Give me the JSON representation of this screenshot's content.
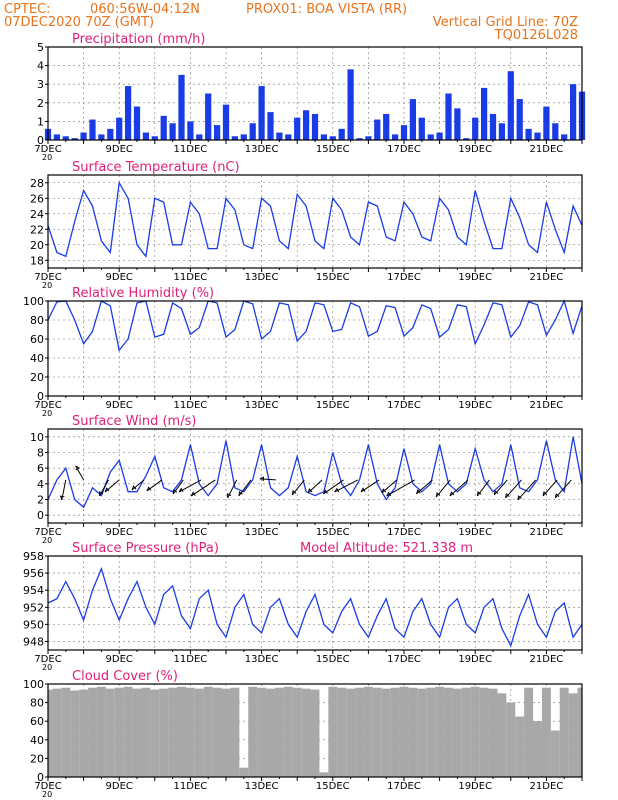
{
  "header": {
    "org": "CPTEC:",
    "coords": "060:56W-04:12N",
    "station": "PROX01: BOA VISTA (RR)",
    "run": "07DEC2020 70Z (GMT)",
    "grid_note": "Vertical Grid Line: 70Z",
    "product_code": "TQ0126L028"
  },
  "colors": {
    "header": "#e8731c",
    "panel_title": "#e0207a",
    "series": "#1a3ce6",
    "cloud": "#a8a8a8"
  },
  "x_axis": {
    "ticks": [
      "7DEC",
      "9DEC",
      "11DEC",
      "13DEC",
      "15DEC",
      "17DEC",
      "19DEC",
      "21DEC"
    ],
    "year_stub": "20"
  },
  "chart_data": [
    {
      "id": "precip",
      "type": "bar",
      "title": "Precipitation (mm/h)",
      "subtitle": "",
      "ylim": [
        0,
        5
      ],
      "yticks": [
        0,
        1,
        2,
        3,
        4,
        5
      ],
      "x": [
        7.0,
        7.25,
        7.5,
        7.75,
        8.0,
        8.25,
        8.5,
        8.75,
        9.0,
        9.25,
        9.5,
        9.75,
        10.0,
        10.25,
        10.5,
        10.75,
        11.0,
        11.25,
        11.5,
        11.75,
        12.0,
        12.25,
        12.5,
        12.75,
        13.0,
        13.25,
        13.5,
        13.75,
        14.0,
        14.25,
        14.5,
        14.75,
        15.0,
        15.25,
        15.5,
        15.75,
        16.0,
        16.25,
        16.5,
        16.75,
        17.0,
        17.25,
        17.5,
        17.75,
        18.0,
        18.25,
        18.5,
        18.75,
        19.0,
        19.25,
        19.5,
        19.75,
        20.0,
        20.25,
        20.5,
        20.75,
        21.0,
        21.25,
        21.5,
        21.75,
        22.0
      ],
      "values": [
        0.6,
        0.3,
        0.2,
        0.1,
        0.4,
        1.1,
        0.3,
        0.6,
        1.2,
        2.9,
        1.8,
        0.4,
        0.2,
        1.3,
        0.9,
        3.5,
        1.0,
        0.3,
        2.5,
        0.8,
        1.9,
        0.2,
        0.3,
        0.9,
        2.9,
        1.5,
        0.4,
        0.3,
        1.2,
        1.6,
        1.4,
        0.3,
        0.2,
        0.6,
        3.8,
        0.1,
        0.2,
        1.1,
        1.4,
        0.3,
        0.8,
        2.2,
        1.2,
        0.3,
        0.4,
        2.5,
        1.7,
        0.1,
        1.2,
        2.8,
        1.4,
        0.9,
        3.7,
        2.2,
        0.6,
        0.4,
        1.8,
        0.9,
        0.3,
        3.0,
        2.6
      ]
    },
    {
      "id": "temp",
      "type": "line",
      "title": "Surface Temperature (nC)",
      "subtitle": "",
      "ylim": [
        17,
        29
      ],
      "yticks": [
        18,
        20,
        22,
        24,
        26,
        28
      ],
      "x": [
        7.0,
        7.25,
        7.5,
        7.75,
        8.0,
        8.25,
        8.5,
        8.75,
        9.0,
        9.25,
        9.5,
        9.75,
        10.0,
        10.25,
        10.5,
        10.75,
        11.0,
        11.25,
        11.5,
        11.75,
        12.0,
        12.25,
        12.5,
        12.75,
        13.0,
        13.25,
        13.5,
        13.75,
        14.0,
        14.25,
        14.5,
        14.75,
        15.0,
        15.25,
        15.5,
        15.75,
        16.0,
        16.25,
        16.5,
        16.75,
        17.0,
        17.25,
        17.5,
        17.75,
        18.0,
        18.25,
        18.5,
        18.75,
        19.0,
        19.25,
        19.5,
        19.75,
        20.0,
        20.25,
        20.5,
        20.75,
        21.0,
        21.25,
        21.5,
        21.75,
        22.0
      ],
      "values": [
        22.5,
        19.0,
        18.5,
        23.0,
        27.0,
        25.0,
        20.5,
        19.0,
        28.0,
        26.0,
        20.0,
        18.5,
        26.0,
        25.5,
        20.0,
        20.0,
        25.5,
        24.0,
        19.5,
        19.5,
        26.0,
        24.5,
        20.0,
        19.5,
        26.0,
        25.0,
        20.5,
        19.5,
        26.5,
        25.0,
        20.5,
        19.5,
        26.0,
        24.5,
        21.0,
        20.0,
        25.5,
        25.0,
        21.0,
        20.5,
        25.5,
        24.0,
        21.0,
        20.5,
        26.0,
        24.5,
        21.0,
        20.0,
        27.0,
        23.0,
        19.5,
        19.5,
        26.0,
        23.5,
        20.0,
        19.0,
        25.5,
        22.0,
        19.0,
        25.0,
        22.5
      ]
    },
    {
      "id": "rh",
      "type": "line",
      "title": "Relative Humidity (%)",
      "subtitle": "",
      "ylim": [
        0,
        100
      ],
      "yticks": [
        0,
        20,
        40,
        60,
        80,
        100
      ],
      "x": [
        7.0,
        7.25,
        7.5,
        7.75,
        8.0,
        8.25,
        8.5,
        8.75,
        9.0,
        9.25,
        9.5,
        9.75,
        10.0,
        10.25,
        10.5,
        10.75,
        11.0,
        11.25,
        11.5,
        11.75,
        12.0,
        12.25,
        12.5,
        12.75,
        13.0,
        13.25,
        13.5,
        13.75,
        14.0,
        14.25,
        14.5,
        14.75,
        15.0,
        15.25,
        15.5,
        15.75,
        16.0,
        16.25,
        16.5,
        16.75,
        17.0,
        17.25,
        17.5,
        17.75,
        18.0,
        18.25,
        18.5,
        18.75,
        19.0,
        19.25,
        19.5,
        19.75,
        20.0,
        20.25,
        20.5,
        20.75,
        21.0,
        21.25,
        21.5,
        21.75,
        22.0
      ],
      "values": [
        80,
        99,
        100,
        80,
        55,
        68,
        100,
        95,
        48,
        60,
        98,
        100,
        62,
        65,
        98,
        92,
        65,
        72,
        100,
        98,
        62,
        70,
        100,
        97,
        60,
        68,
        98,
        96,
        58,
        68,
        98,
        96,
        68,
        70,
        98,
        94,
        63,
        68,
        95,
        93,
        63,
        72,
        96,
        92,
        62,
        70,
        96,
        94,
        55,
        75,
        98,
        96,
        62,
        74,
        99,
        96,
        64,
        80,
        100,
        66,
        95
      ]
    },
    {
      "id": "wind",
      "type": "line",
      "title": "Surface Wind (m/s)",
      "subtitle": "",
      "ylim": [
        -1,
        11
      ],
      "yticks": [
        0,
        2,
        4,
        6,
        8,
        10
      ],
      "x": [
        7.0,
        7.25,
        7.5,
        7.75,
        8.0,
        8.25,
        8.5,
        8.75,
        9.0,
        9.25,
        9.5,
        9.75,
        10.0,
        10.25,
        10.5,
        10.75,
        11.0,
        11.25,
        11.5,
        11.75,
        12.0,
        12.25,
        12.5,
        12.75,
        13.0,
        13.25,
        13.5,
        13.75,
        14.0,
        14.25,
        14.5,
        14.75,
        15.0,
        15.25,
        15.5,
        15.75,
        16.0,
        16.25,
        16.5,
        16.75,
        17.0,
        17.25,
        17.5,
        17.75,
        18.0,
        18.25,
        18.5,
        18.75,
        19.0,
        19.25,
        19.5,
        19.75,
        20.0,
        20.25,
        20.5,
        20.75,
        21.0,
        21.25,
        21.5,
        21.75,
        22.0
      ],
      "values": [
        2.0,
        4.5,
        6.0,
        2.0,
        1.0,
        3.5,
        2.5,
        5.5,
        7.0,
        3.0,
        3.0,
        5.0,
        7.5,
        3.5,
        3.0,
        4.5,
        9.0,
        4.0,
        2.5,
        4.0,
        9.5,
        3.5,
        3.0,
        4.5,
        9.0,
        3.5,
        2.5,
        3.5,
        7.5,
        3.0,
        2.5,
        3.0,
        8.0,
        4.0,
        2.5,
        4.5,
        9.0,
        4.0,
        2.0,
        3.5,
        8.5,
        4.0,
        3.0,
        4.0,
        9.0,
        4.0,
        3.0,
        4.0,
        8.5,
        4.5,
        3.0,
        4.0,
        9.0,
        3.5,
        3.0,
        4.5,
        9.5,
        4.5,
        3.0,
        10.0,
        4.0
      ],
      "arrows": [
        {
          "x": 7.5,
          "u": -0.4,
          "v": -2.0
        },
        {
          "x": 8.0,
          "u": -0.8,
          "v": 1.4
        },
        {
          "x": 8.7,
          "u": -0.9,
          "v": -1.6
        },
        {
          "x": 9.0,
          "u": -1.4,
          "v": -1.2
        },
        {
          "x": 9.7,
          "u": -1.2,
          "v": -1.0
        },
        {
          "x": 10.2,
          "u": -1.5,
          "v": -1.1
        },
        {
          "x": 10.8,
          "u": -1.0,
          "v": -1.4
        },
        {
          "x": 11.3,
          "u": -2.2,
          "v": -1.2
        },
        {
          "x": 11.7,
          "u": -2.4,
          "v": -1.6
        },
        {
          "x": 12.3,
          "u": -0.9,
          "v": -1.8
        },
        {
          "x": 12.7,
          "u": -1.2,
          "v": -1.6
        },
        {
          "x": 13.4,
          "u": -1.6,
          "v": 0.1
        },
        {
          "x": 14.2,
          "u": -1.2,
          "v": -1.5
        },
        {
          "x": 14.7,
          "u": -1.4,
          "v": -1.3
        },
        {
          "x": 15.3,
          "u": -2.0,
          "v": -1.4
        },
        {
          "x": 15.7,
          "u": -2.3,
          "v": -1.2
        },
        {
          "x": 16.3,
          "u": -1.8,
          "v": -1.2
        },
        {
          "x": 16.8,
          "u": -1.5,
          "v": -1.3
        },
        {
          "x": 17.3,
          "u": -2.8,
          "v": -1.6
        },
        {
          "x": 17.8,
          "u": -1.6,
          "v": -1.4
        },
        {
          "x": 18.3,
          "u": -1.4,
          "v": -1.7
        },
        {
          "x": 18.8,
          "u": -1.8,
          "v": -1.6
        },
        {
          "x": 19.4,
          "u": -1.2,
          "v": -1.6
        },
        {
          "x": 19.9,
          "u": -1.3,
          "v": -1.5
        },
        {
          "x": 20.3,
          "u": -1.6,
          "v": -1.8
        },
        {
          "x": 20.7,
          "u": -1.8,
          "v": -2.0
        },
        {
          "x": 21.3,
          "u": -1.4,
          "v": -1.6
        },
        {
          "x": 21.7,
          "u": -1.6,
          "v": -1.8
        }
      ]
    },
    {
      "id": "pressure",
      "type": "line",
      "title": "Surface Pressure (hPa)",
      "subtitle": "Model Altitude: 521.338 m",
      "ylim": [
        947,
        958
      ],
      "yticks": [
        948,
        950,
        952,
        954,
        956,
        958
      ],
      "x": [
        7.0,
        7.25,
        7.5,
        7.75,
        8.0,
        8.25,
        8.5,
        8.75,
        9.0,
        9.25,
        9.5,
        9.75,
        10.0,
        10.25,
        10.5,
        10.75,
        11.0,
        11.25,
        11.5,
        11.75,
        12.0,
        12.25,
        12.5,
        12.75,
        13.0,
        13.25,
        13.5,
        13.75,
        14.0,
        14.25,
        14.5,
        14.75,
        15.0,
        15.25,
        15.5,
        15.75,
        16.0,
        16.25,
        16.5,
        16.75,
        17.0,
        17.25,
        17.5,
        17.75,
        18.0,
        18.25,
        18.5,
        18.75,
        19.0,
        19.25,
        19.5,
        19.75,
        20.0,
        20.25,
        20.5,
        20.75,
        21.0,
        21.25,
        21.5,
        21.75,
        22.0
      ],
      "values": [
        952.5,
        953.0,
        955.0,
        953.0,
        950.5,
        954.0,
        956.5,
        953.0,
        950.5,
        953.0,
        955.0,
        952.0,
        950.0,
        953.5,
        954.5,
        951.0,
        949.5,
        953.0,
        954.0,
        950.0,
        948.5,
        952.0,
        953.5,
        950.0,
        949.0,
        952.0,
        953.0,
        950.0,
        948.5,
        951.5,
        953.5,
        950.0,
        949.0,
        951.5,
        953.0,
        950.0,
        948.5,
        951.0,
        953.0,
        949.5,
        948.5,
        951.5,
        953.0,
        950.0,
        948.5,
        952.0,
        953.0,
        950.0,
        949.0,
        952.0,
        953.0,
        949.5,
        947.5,
        951.0,
        953.5,
        950.0,
        948.5,
        951.5,
        952.5,
        948.5,
        950.0
      ]
    },
    {
      "id": "cloud",
      "type": "area",
      "title": "Cloud Cover (%)",
      "subtitle": "",
      "ylim": [
        0,
        100
      ],
      "yticks": [
        0,
        20,
        40,
        60,
        80,
        100
      ],
      "x": [
        7.0,
        7.25,
        7.5,
        7.75,
        8.0,
        8.25,
        8.5,
        8.75,
        9.0,
        9.25,
        9.5,
        9.75,
        10.0,
        10.25,
        10.5,
        10.75,
        11.0,
        11.25,
        11.5,
        11.75,
        12.0,
        12.25,
        12.5,
        12.75,
        13.0,
        13.25,
        13.5,
        13.75,
        14.0,
        14.25,
        14.5,
        14.75,
        15.0,
        15.25,
        15.5,
        15.75,
        16.0,
        16.25,
        16.5,
        16.75,
        17.0,
        17.25,
        17.5,
        17.75,
        18.0,
        18.25,
        18.5,
        18.75,
        19.0,
        19.25,
        19.5,
        19.75,
        20.0,
        20.25,
        20.5,
        20.75,
        21.0,
        21.25,
        21.5,
        21.75,
        22.0
      ],
      "values": [
        94,
        95,
        96,
        93,
        94,
        96,
        97,
        95,
        96,
        97,
        95,
        96,
        94,
        95,
        96,
        97,
        96,
        95,
        97,
        96,
        95,
        96,
        10,
        97,
        96,
        95,
        96,
        97,
        96,
        95,
        94,
        5,
        97,
        96,
        95,
        96,
        97,
        96,
        95,
        96,
        97,
        96,
        95,
        96,
        97,
        96,
        95,
        96,
        97,
        96,
        95,
        90,
        80,
        65,
        96,
        60,
        96,
        50,
        96,
        90,
        96
      ]
    }
  ]
}
